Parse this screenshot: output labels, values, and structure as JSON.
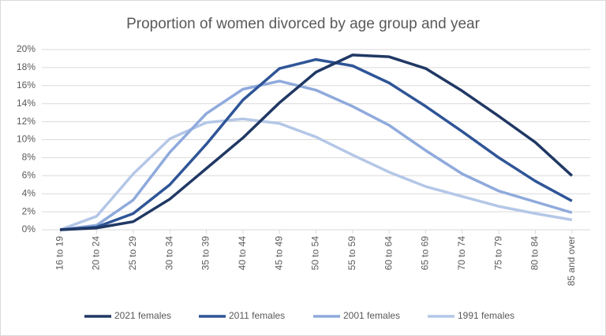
{
  "chart_data": {
    "type": "line",
    "title": "Proportion of women divorced by age group and year",
    "categories": [
      "16 to 19",
      "20 to 24",
      "25 to 29",
      "30 to 34",
      "35 to 39",
      "40 to 44",
      "45 to 49",
      "50 to 54",
      "55 to 59",
      "60 to 64",
      "65 to 69",
      "70 to 74",
      "75 to 79",
      "80 to 84",
      "85 and over"
    ],
    "series": [
      {
        "name": "2021 females",
        "color": "#203864",
        "values": [
          0,
          0.2,
          0.9,
          3.4,
          6.8,
          10.2,
          14.1,
          17.5,
          19.4,
          19.2,
          17.9,
          15.4,
          12.6,
          9.7,
          6.0
        ]
      },
      {
        "name": "2011 females",
        "color": "#2f5597",
        "values": [
          0,
          0.3,
          1.8,
          5.0,
          9.5,
          14.4,
          17.9,
          18.9,
          18.2,
          16.3,
          13.7,
          10.9,
          8.0,
          5.4,
          3.2
        ]
      },
      {
        "name": "2001 females",
        "color": "#8faadc",
        "values": [
          0,
          0.5,
          3.3,
          8.6,
          12.9,
          15.6,
          16.5,
          15.5,
          13.7,
          11.6,
          8.8,
          6.2,
          4.3,
          3.1,
          1.9
        ]
      },
      {
        "name": "1991 females",
        "color": "#b4c7e7",
        "values": [
          0,
          1.5,
          6.2,
          10.1,
          11.9,
          12.3,
          11.8,
          10.3,
          8.3,
          6.4,
          4.8,
          3.7,
          2.6,
          1.8,
          1.1
        ]
      }
    ],
    "ylim": [
      0,
      20
    ],
    "yticks": [
      {
        "value": 0,
        "label": "0%"
      },
      {
        "value": 2,
        "label": "2%"
      },
      {
        "value": 4,
        "label": "4%"
      },
      {
        "value": 6,
        "label": "6%"
      },
      {
        "value": 8,
        "label": "8%"
      },
      {
        "value": 10,
        "label": "10%"
      },
      {
        "value": 12,
        "label": "12%"
      },
      {
        "value": 14,
        "label": "14%"
      },
      {
        "value": 16,
        "label": "16%"
      },
      {
        "value": 18,
        "label": "18%"
      },
      {
        "value": 20,
        "label": "20%"
      }
    ],
    "grid": true,
    "legend": "bottom"
  }
}
